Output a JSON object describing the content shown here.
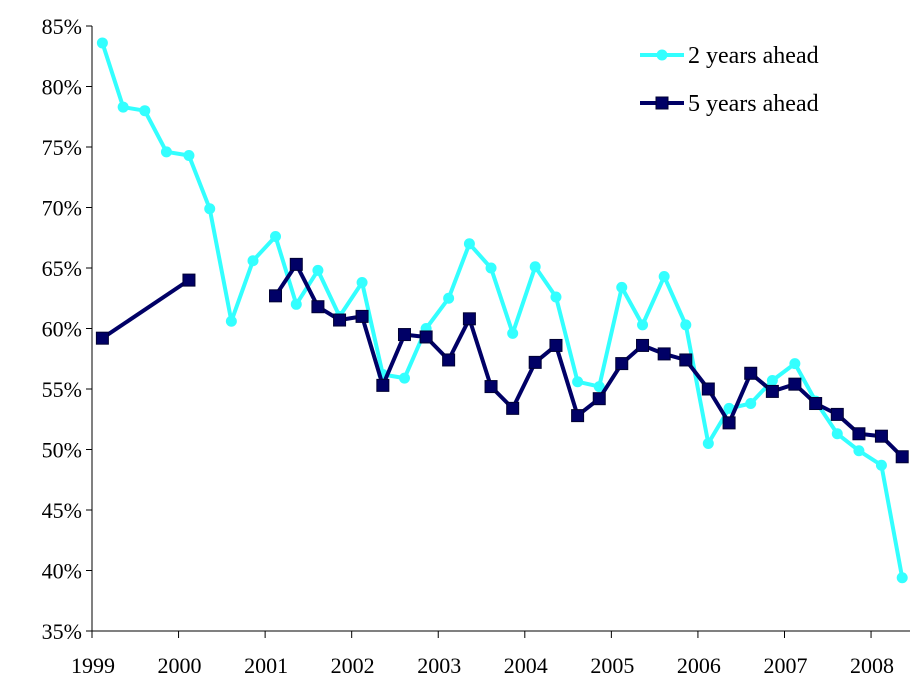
{
  "chart_data": {
    "type": "line",
    "title": "",
    "xlabel": "",
    "ylabel": "",
    "ylim": [
      35,
      85
    ],
    "y_ticks": [
      "85%",
      "80%",
      "75%",
      "70%",
      "65%",
      "60%",
      "55%",
      "50%",
      "45%",
      "40%",
      "35%"
    ],
    "x_ticks": [
      "1999",
      "2000",
      "2001",
      "2002",
      "2003",
      "2004",
      "2005",
      "2006",
      "2007",
      "2008"
    ],
    "grid": false,
    "legend_position": "top-right",
    "colors": {
      "two_year": "#33ffff",
      "five_year": "#000066",
      "axis": "#000000"
    },
    "series": [
      {
        "name": "2 years ahead",
        "marker": "circle",
        "points": [
          [
            1999.12,
            83.6
          ],
          [
            1999.36,
            78.3
          ],
          [
            1999.61,
            78.0
          ],
          [
            1999.86,
            74.6
          ],
          [
            2000.12,
            74.3
          ],
          [
            2000.36,
            69.9
          ],
          [
            2000.61,
            60.6
          ],
          [
            2000.86,
            65.6
          ],
          [
            2001.12,
            67.6
          ],
          [
            2001.36,
            62.0
          ],
          [
            2001.61,
            64.8
          ],
          [
            2001.86,
            61.0
          ],
          [
            2002.12,
            63.8
          ],
          [
            2002.36,
            56.2
          ],
          [
            2002.61,
            55.9
          ],
          [
            2002.86,
            60.0
          ],
          [
            2003.12,
            62.5
          ],
          [
            2003.36,
            67.0
          ],
          [
            2003.61,
            65.0
          ],
          [
            2003.86,
            59.6
          ],
          [
            2004.12,
            65.1
          ],
          [
            2004.36,
            62.6
          ],
          [
            2004.61,
            55.6
          ],
          [
            2004.86,
            55.2
          ],
          [
            2005.12,
            63.4
          ],
          [
            2005.36,
            60.3
          ],
          [
            2005.61,
            64.3
          ],
          [
            2005.86,
            60.3
          ],
          [
            2006.12,
            50.5
          ],
          [
            2006.36,
            53.4
          ],
          [
            2006.61,
            53.8
          ],
          [
            2006.86,
            55.7
          ],
          [
            2007.12,
            57.1
          ],
          [
            2007.36,
            54.0
          ],
          [
            2007.61,
            51.3
          ],
          [
            2007.86,
            49.9
          ],
          [
            2008.12,
            48.7
          ],
          [
            2008.36,
            39.4
          ]
        ]
      },
      {
        "name": "5 years ahead",
        "marker": "square",
        "points": [
          [
            1999.12,
            59.2
          ],
          [
            2000.12,
            64.0
          ],
          null,
          [
            2001.12,
            62.7
          ],
          [
            2001.36,
            65.3
          ],
          [
            2001.61,
            61.8
          ],
          [
            2001.86,
            60.7
          ],
          [
            2002.12,
            61.0
          ],
          [
            2002.36,
            55.3
          ],
          [
            2002.61,
            59.5
          ],
          [
            2002.86,
            59.3
          ],
          [
            2003.12,
            57.4
          ],
          [
            2003.36,
            60.8
          ],
          [
            2003.61,
            55.2
          ],
          [
            2003.86,
            53.4
          ],
          [
            2004.12,
            57.2
          ],
          [
            2004.36,
            58.6
          ],
          [
            2004.61,
            52.8
          ],
          [
            2004.86,
            54.2
          ],
          [
            2005.12,
            57.1
          ],
          [
            2005.36,
            58.6
          ],
          [
            2005.61,
            57.9
          ],
          [
            2005.86,
            57.4
          ],
          [
            2006.12,
            55.0
          ],
          [
            2006.36,
            52.2
          ],
          [
            2006.61,
            56.3
          ],
          [
            2006.86,
            54.8
          ],
          [
            2007.12,
            55.4
          ],
          [
            2007.36,
            53.8
          ],
          [
            2007.61,
            52.9
          ],
          [
            2007.86,
            51.3
          ],
          [
            2008.12,
            51.1
          ],
          [
            2008.36,
            49.4
          ]
        ]
      }
    ]
  }
}
